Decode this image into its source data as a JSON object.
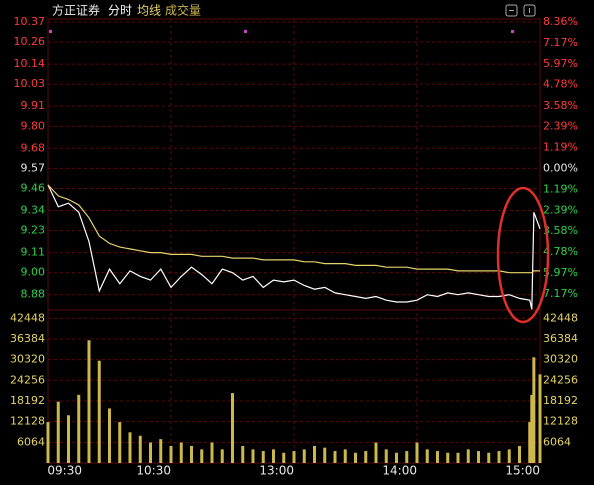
{
  "chart_data": [
    {
      "type": "line",
      "title": "方正证券",
      "x": [
        "09:30",
        "09:35",
        "09:40",
        "09:45",
        "09:50",
        "09:55",
        "10:00",
        "10:05",
        "10:10",
        "10:15",
        "10:20",
        "10:25",
        "10:30",
        "10:35",
        "10:40",
        "10:45",
        "10:50",
        "10:55",
        "11:00",
        "11:05",
        "11:10",
        "11:15",
        "11:20",
        "11:25",
        "11:30",
        "13:05",
        "13:10",
        "13:15",
        "13:20",
        "13:25",
        "13:30",
        "13:35",
        "13:40",
        "13:45",
        "13:50",
        "13:55",
        "14:00",
        "14:05",
        "14:10",
        "14:15",
        "14:20",
        "14:25",
        "14:30",
        "14:35",
        "14:40",
        "14:45",
        "14:50",
        "14:55",
        "14:56",
        "14:57",
        "15:00"
      ],
      "series": [
        {
          "name": "分时",
          "color": "#ffffff",
          "values": [
            9.48,
            9.36,
            9.38,
            9.33,
            9.17,
            8.9,
            9.02,
            8.94,
            9.01,
            8.98,
            8.96,
            9.02,
            8.92,
            8.98,
            9.03,
            8.99,
            8.94,
            9.02,
            9.0,
            8.96,
            8.98,
            8.92,
            8.96,
            8.95,
            8.96,
            8.93,
            8.91,
            8.92,
            8.89,
            8.88,
            8.87,
            8.86,
            8.87,
            8.85,
            8.84,
            8.84,
            8.85,
            8.88,
            8.87,
            8.89,
            8.88,
            8.89,
            8.88,
            8.87,
            8.87,
            8.88,
            8.86,
            8.85,
            8.8,
            9.33,
            9.24
          ]
        },
        {
          "name": "均线",
          "color": "#e6d36a",
          "values": [
            9.48,
            9.42,
            9.4,
            9.37,
            9.3,
            9.2,
            9.16,
            9.14,
            9.13,
            9.12,
            9.11,
            9.11,
            9.1,
            9.1,
            9.1,
            9.09,
            9.09,
            9.09,
            9.08,
            9.08,
            9.08,
            9.07,
            9.07,
            9.07,
            9.07,
            9.06,
            9.06,
            9.05,
            9.05,
            9.05,
            9.04,
            9.04,
            9.04,
            9.03,
            9.03,
            9.03,
            9.02,
            9.02,
            9.02,
            9.02,
            9.01,
            9.01,
            9.01,
            9.01,
            9.01,
            9.0,
            9.0,
            9.0,
            9.0,
            9.01,
            9.01
          ]
        }
      ],
      "ylim": [
        8.78,
        10.43
      ],
      "yticks": [
        10.37,
        10.26,
        10.14,
        10.03,
        9.91,
        {
          "value": 9.8,
          "label": "9.80"
        },
        9.68,
        9.57,
        9.46,
        9.34,
        9.23,
        9.11,
        {
          "value": 9,
          "label": "9.00"
        },
        8.88
      ],
      "base": 9.57,
      "y2lim": [
        -8.25,
        8.99
      ],
      "y2ticks": [
        {
          "value": 8.36,
          "label": "8.36%"
        },
        {
          "value": 7.17,
          "label": "7.17%"
        },
        {
          "value": 5.97,
          "label": "5.97%"
        },
        {
          "value": 4.78,
          "label": "4.78%"
        },
        {
          "value": 3.58,
          "label": "3.58%"
        },
        {
          "value": 2.39,
          "label": "2.39%"
        },
        {
          "value": 1.19,
          "label": "1.19%"
        },
        {
          "value": 0,
          "label": "0.00%"
        },
        {
          "value": -1.19,
          "label": "1.19%"
        },
        {
          "value": -2.39,
          "label": "2.39%"
        },
        {
          "value": -3.58,
          "label": "3.58%"
        },
        {
          "value": -4.78,
          "label": "4.78%"
        },
        {
          "value": -5.97,
          "label": "5.97%"
        },
        {
          "value": -7.17,
          "label": "7.17%"
        }
      ],
      "up_color": "#ff3b3b",
      "down_color": "#2fd14a",
      "flat_color": "#e8e8e8",
      "grid": true
    },
    {
      "type": "bar",
      "x": [
        "09:30",
        "09:35",
        "09:40",
        "09:45",
        "09:50",
        "09:55",
        "10:00",
        "10:05",
        "10:10",
        "10:15",
        "10:20",
        "10:25",
        "10:30",
        "10:35",
        "10:40",
        "10:45",
        "10:50",
        "10:55",
        "11:00",
        "11:05",
        "11:10",
        "11:15",
        "11:20",
        "11:25",
        "11:30",
        "13:05",
        "13:10",
        "13:15",
        "13:20",
        "13:25",
        "13:30",
        "13:35",
        "13:40",
        "13:45",
        "13:50",
        "13:55",
        "14:00",
        "14:05",
        "14:10",
        "14:15",
        "14:20",
        "14:25",
        "14:30",
        "14:35",
        "14:40",
        "14:45",
        "14:50",
        "14:55",
        "14:56",
        "14:57",
        "15:00"
      ],
      "series": [
        {
          "name": "成交量",
          "color": "#cdb84c",
          "values": [
            12000,
            18000,
            14000,
            20000,
            36000,
            30000,
            16000,
            12000,
            9000,
            8000,
            6000,
            7000,
            5000,
            6000,
            5000,
            4000,
            6000,
            4000,
            20500,
            5000,
            4000,
            3500,
            4000,
            3000,
            3500,
            4000,
            5000,
            4500,
            3500,
            4000,
            3000,
            3500,
            6000,
            4000,
            3000,
            3500,
            6000,
            4000,
            3500,
            3000,
            3000,
            4000,
            3500,
            3000,
            3500,
            4000,
            5000,
            12000,
            20000,
            31000,
            26000
          ]
        }
      ],
      "ylim": [
        0,
        44000
      ],
      "yticks": [
        42448,
        36384,
        30320,
        24256,
        18192,
        12128,
        6064
      ],
      "label_color": "#e6d36a",
      "xticks": [
        "09:30",
        "10:30",
        "13:00",
        "14:00",
        "15:00"
      ],
      "grid": true
    }
  ]
}
